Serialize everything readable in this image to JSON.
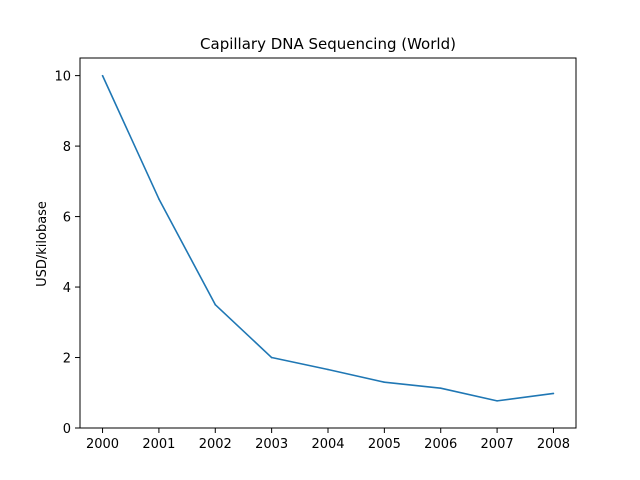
{
  "chart_data": {
    "type": "line",
    "title": "Capillary DNA Sequencing (World)",
    "xlabel": "",
    "ylabel": "USD/kilobase",
    "x": [
      2000,
      2001,
      2002,
      2003,
      2004,
      2005,
      2006,
      2007,
      2008
    ],
    "series": [
      {
        "values": [
          10.0,
          6.5,
          3.5,
          2.0,
          1.66,
          1.3,
          1.13,
          0.77,
          0.98
        ],
        "color": "#1f77b4"
      }
    ],
    "xlim": [
      1999.6,
      2008.4
    ],
    "ylim": [
      0,
      10.5
    ],
    "xticks": [
      "2000",
      "2001",
      "2002",
      "2003",
      "2004",
      "2005",
      "2006",
      "2007",
      "2008"
    ],
    "yticks": [
      "0",
      "2",
      "4",
      "6",
      "8",
      "10"
    ],
    "grid": false
  }
}
